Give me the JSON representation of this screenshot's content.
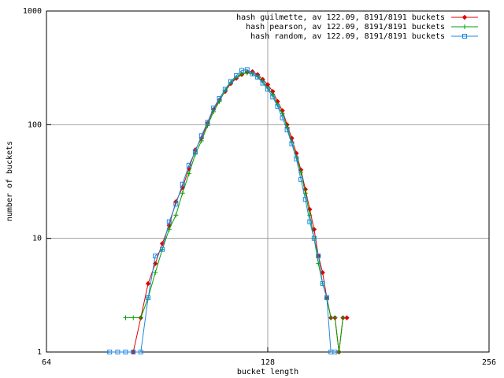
{
  "chart_data": {
    "type": "line",
    "xlabel": "bucket length",
    "ylabel": "number of buckets",
    "x": [
      78,
      80,
      82,
      84,
      86,
      88,
      90,
      92,
      94,
      96,
      98,
      100,
      102,
      104,
      106,
      108,
      110,
      112,
      114,
      116,
      118,
      120,
      122,
      124,
      126,
      128,
      130,
      132,
      134,
      136,
      138,
      140,
      142,
      144,
      146,
      148,
      150,
      152,
      154,
      156,
      158,
      160,
      162,
      164
    ],
    "series": [
      {
        "name": "hash guilmette, av 122.09, 8191/8191 buckets",
        "color": "#e00000",
        "marker": "diamond",
        "values": [
          null,
          null,
          null,
          1,
          2,
          4,
          6,
          9,
          13,
          21,
          28,
          41,
          60,
          76,
          103,
          136,
          165,
          196,
          230,
          256,
          276,
          290,
          293,
          276,
          250,
          225,
          196,
          160,
          133,
          100,
          76,
          56,
          40,
          27,
          18,
          12,
          7,
          5,
          3,
          2,
          2,
          1,
          2,
          2
        ]
      },
      {
        "name": "hash pearson, av 122.09, 8191/8191 buckets",
        "color": "#00a000",
        "marker": "plus",
        "values": [
          null,
          null,
          2,
          2,
          2,
          3,
          5,
          8,
          12,
          16,
          25,
          37,
          55,
          72,
          98,
          130,
          160,
          200,
          235,
          262,
          280,
          285,
          280,
          265,
          240,
          210,
          185,
          150,
          125,
          95,
          70,
          52,
          38,
          25,
          16,
          10,
          6,
          4,
          3,
          2,
          2,
          1,
          2,
          null
        ]
      },
      {
        "name": "hash random, av 122.09, 8191/8191 buckets",
        "color": "#1e88e0",
        "marker": "square",
        "values": [
          1,
          1,
          1,
          1,
          1,
          3,
          7,
          8,
          14,
          20,
          30,
          44,
          58,
          80,
          105,
          140,
          170,
          205,
          240,
          270,
          300,
          305,
          280,
          262,
          232,
          205,
          175,
          145,
          115,
          90,
          68,
          50,
          33,
          22,
          14,
          10,
          7,
          4,
          3,
          1,
          1,
          null,
          null,
          null
        ]
      }
    ],
    "xlim": [
      64,
      256
    ],
    "xticks": [
      64,
      128,
      256
    ],
    "xscale": "log",
    "ylim": [
      1,
      1000
    ],
    "yticks": [
      1,
      10,
      100,
      1000
    ],
    "yscale": "log",
    "grid": true,
    "legend": "top-right"
  }
}
